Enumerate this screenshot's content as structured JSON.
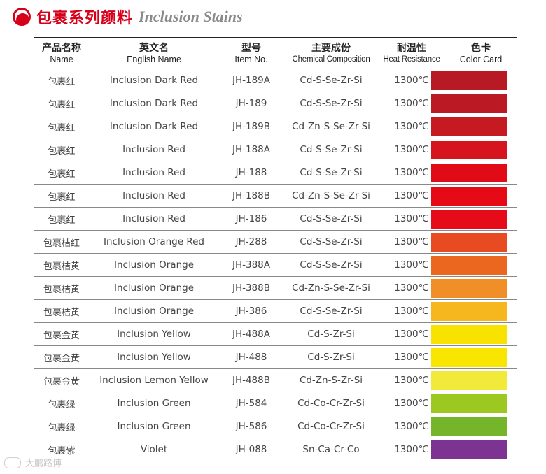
{
  "title": {
    "cn": "包裹系列颜料",
    "en": "Inclusion Stains",
    "accent": "#d7001a"
  },
  "columns": [
    {
      "cn": "产品名称",
      "en": "Name"
    },
    {
      "cn": "英文名",
      "en": "English Name"
    },
    {
      "cn": "型号",
      "en": "Item No."
    },
    {
      "cn": "主要成份",
      "en": "Chemical Composition"
    },
    {
      "cn": "耐温性",
      "en": "Heat Resistance"
    },
    {
      "cn": "色卡",
      "en": "Color Card"
    }
  ],
  "rows": [
    {
      "name": "包裹红",
      "english": "Inclusion Dark Red",
      "item": "JH-189A",
      "chem": "Cd-S-Se-Zr-Si",
      "heat": "1300℃",
      "color": "#b81a25"
    },
    {
      "name": "包裹红",
      "english": "Inclusion Dark Red",
      "item": "JH-189",
      "chem": "Cd-S-Se-Zr-Si",
      "heat": "1300℃",
      "color": "#bb1a24"
    },
    {
      "name": "包裹红",
      "english": "Inclusion Dark Red",
      "item": "JH-189B",
      "chem": "Cd-Zn-S-Se-Zr-Si",
      "heat": "1300℃",
      "color": "#c61a22"
    },
    {
      "name": "包裹红",
      "english": "Inclusion Red",
      "item": "JH-188A",
      "chem": "Cd-S-Se-Zr-Si",
      "heat": "1300℃",
      "color": "#d5141d"
    },
    {
      "name": "包裹红",
      "english": "Inclusion Red",
      "item": "JH-188",
      "chem": "Cd-S-Se-Zr-Si",
      "heat": "1300℃",
      "color": "#e00b16"
    },
    {
      "name": "包裹红",
      "english": "Inclusion Red",
      "item": "JH-188B",
      "chem": "Cd-Zn-S-Se-Zr-Si",
      "heat": "1300℃",
      "color": "#e50a16"
    },
    {
      "name": "包裹红",
      "english": "Inclusion Red",
      "item": "JH-186",
      "chem": "Cd-S-Se-Zr-Si",
      "heat": "1300℃",
      "color": "#e60b18"
    },
    {
      "name": "包裹桔红",
      "english": "Inclusion Orange Red",
      "item": "JH-288",
      "chem": "Cd-S-Se-Zr-Si",
      "heat": "1300℃",
      "color": "#e84a22"
    },
    {
      "name": "包裹桔黄",
      "english": "Inclusion Orange",
      "item": "JH-388A",
      "chem": "Cd-S-Se-Zr-Si",
      "heat": "1300℃",
      "color": "#eb661e"
    },
    {
      "name": "包裹桔黄",
      "english": "Inclusion Orange",
      "item": "JH-388B",
      "chem": "Cd-Zn-S-Se-Zr-Si",
      "heat": "1300℃",
      "color": "#f08f28"
    },
    {
      "name": "包裹桔黄",
      "english": "Inclusion Orange",
      "item": "JH-386",
      "chem": "Cd-S-Se-Zr-Si",
      "heat": "1300℃",
      "color": "#f6b71e"
    },
    {
      "name": "包裹金黄",
      "english": "Inclusion Yellow",
      "item": "JH-488A",
      "chem": "Cd-S-Zr-Si",
      "heat": "1300℃",
      "color": "#f8e300"
    },
    {
      "name": "包裹金黄",
      "english": "Inclusion Yellow",
      "item": "JH-488",
      "chem": "Cd-S-Zr-Si",
      "heat": "1300℃",
      "color": "#f8e600"
    },
    {
      "name": "包裹金黄",
      "english": "Inclusion Lemon Yellow",
      "item": "JH-488B",
      "chem": "Cd-Zn-S-Zr-Si",
      "heat": "1300℃",
      "color": "#f2ea3a"
    },
    {
      "name": "包裹绿",
      "english": "Inclusion Green",
      "item": "JH-584",
      "chem": "Cd-Co-Cr-Zr-Si",
      "heat": "1300℃",
      "color": "#9dc81f"
    },
    {
      "name": "包裹绿",
      "english": "Inclusion Green",
      "item": "JH-586",
      "chem": "Cd-Co-Cr-Zr-Si",
      "heat": "1300℃",
      "color": "#74b52b"
    },
    {
      "name": "包裹紫",
      "english": "Violet",
      "item": "JH-088",
      "chem": "Sn-Ca-Cr-Co",
      "heat": "1300℃",
      "color": "#7c3391"
    }
  ],
  "watermark": "大鹏路博"
}
